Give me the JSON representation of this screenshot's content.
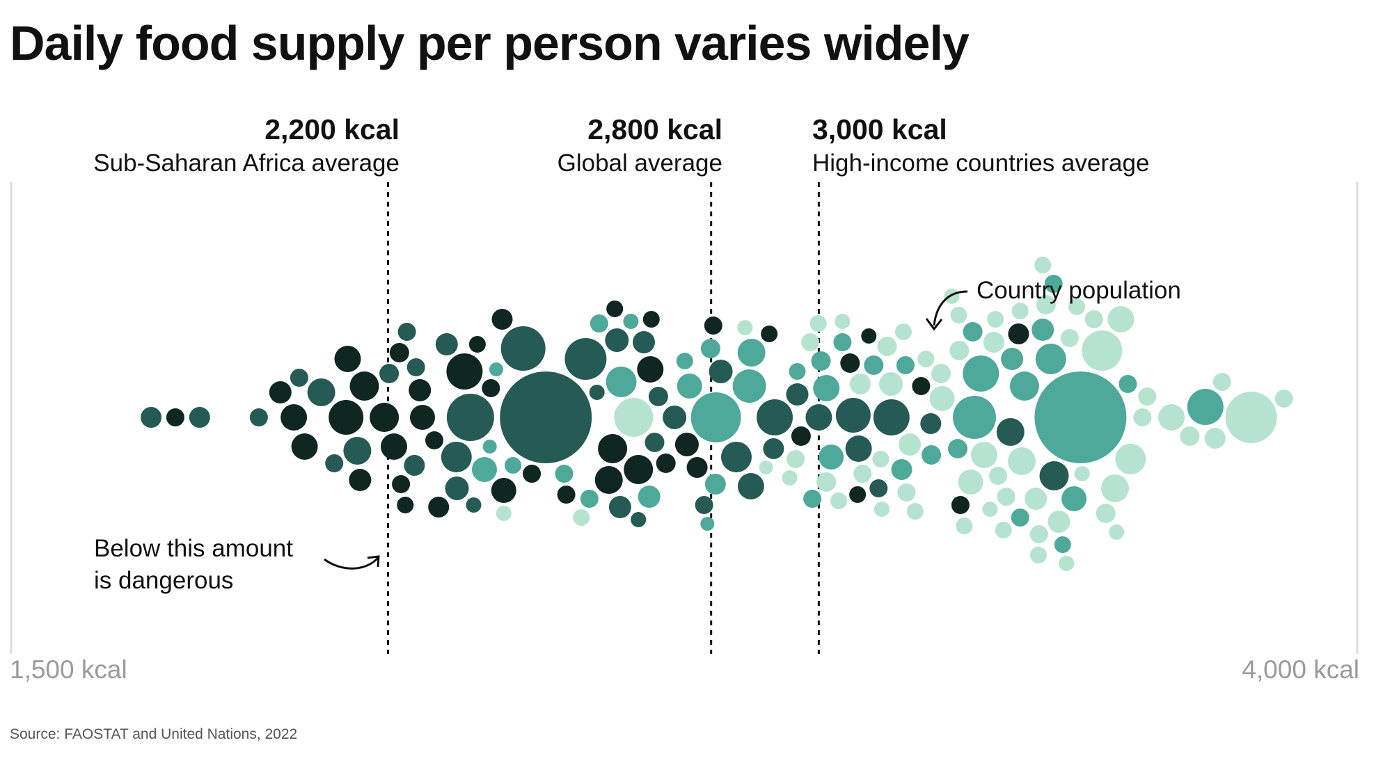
{
  "title": "Daily food supply per person varies widely",
  "source": "Source: FAOSTAT and United Nations, 2022",
  "colors": {
    "darkest": "#0f2622",
    "dark": "#265a54",
    "mid": "#4ea99a",
    "light": "#b5e3d0",
    "reference_line": "#111111",
    "axis": "#dddddd",
    "axis_text": "#9a9a9a"
  },
  "reference_lines": [
    {
      "value_label": "2,200 kcal",
      "description": "Sub-Saharan Africa average"
    },
    {
      "value_label": "2,800 kcal",
      "description": "Global average"
    },
    {
      "value_label": "3,000 kcal",
      "description": "High-income countries average"
    }
  ],
  "annotations": {
    "population": "Country population",
    "danger_line1": "Below this amount",
    "danger_line2": "is dangerous"
  },
  "axis": {
    "min_label": "1,500 kcal",
    "max_label": "4,000 kcal"
  },
  "chart_data": {
    "type": "scatter",
    "title": "Daily food supply per person varies widely",
    "xlabel": "",
    "ylabel": "",
    "xlim": [
      1500,
      4000
    ],
    "unit": "kcal per person per day",
    "reference_lines": [
      {
        "x": 2200,
        "label": "2,200 kcal",
        "description": "Sub-Saharan Africa average"
      },
      {
        "x": 2800,
        "label": "2,800 kcal",
        "description": "Global average"
      },
      {
        "x": 3000,
        "label": "3,000 kcal",
        "description": "High-income countries average"
      }
    ],
    "size_encoding": "Country population",
    "points": [
      [
        1760,
        1,
        15
      ],
      [
        1805,
        0,
        13
      ],
      [
        1850,
        1,
        15
      ],
      [
        1960,
        1,
        13
      ],
      [
        2000,
        0,
        16
      ],
      [
        2025,
        0,
        19
      ],
      [
        2035,
        1,
        13
      ],
      [
        2045,
        0,
        19
      ],
      [
        2076,
        1,
        20
      ],
      [
        2100,
        1,
        13
      ],
      [
        2122,
        0,
        25
      ],
      [
        2125,
        0,
        19
      ],
      [
        2143,
        1,
        20
      ],
      [
        2156,
        0,
        21
      ],
      [
        2148,
        0,
        16
      ],
      [
        2193,
        0,
        21
      ],
      [
        2211,
        0,
        19
      ],
      [
        2202,
        1,
        14
      ],
      [
        2221,
        0,
        14
      ],
      [
        2224,
        0,
        13
      ],
      [
        2235,
        1,
        13
      ],
      [
        2232,
        0,
        12
      ],
      [
        2249,
        1,
        15
      ],
      [
        2252,
        1,
        13
      ],
      [
        2259,
        0,
        16
      ],
      [
        2264,
        0,
        18
      ],
      [
        2286,
        0,
        13
      ],
      [
        2294,
        0,
        15
      ],
      [
        2309,
        1,
        16
      ],
      [
        2327,
        1,
        22
      ],
      [
        2328,
        1,
        17
      ],
      [
        2342,
        0,
        26
      ],
      [
        2353,
        1,
        34
      ],
      [
        2359,
        1,
        11
      ],
      [
        2366,
        0,
        12
      ],
      [
        2379,
        2,
        18
      ],
      [
        2389,
        2,
        10
      ],
      [
        2391,
        0,
        13
      ],
      [
        2401,
        2,
        10
      ],
      [
        2412,
        0,
        15
      ],
      [
        2415,
        3,
        11
      ],
      [
        2415,
        0,
        18
      ],
      [
        2432,
        2,
        12
      ],
      [
        2451,
        1,
        32
      ],
      [
        2467,
        0,
        13
      ],
      [
        2493,
        1,
        66
      ],
      [
        2527,
        2,
        13
      ],
      [
        2531,
        0,
        13
      ],
      [
        2559,
        3,
        12
      ],
      [
        2567,
        1,
        30
      ],
      [
        2574,
        2,
        13
      ],
      [
        2588,
        1,
        11
      ],
      [
        2592,
        2,
        13
      ],
      [
        2617,
        0,
        21
      ],
      [
        2610,
        0,
        20
      ],
      [
        2625,
        1,
        17
      ],
      [
        2633,
        2,
        22
      ],
      [
        2621,
        0,
        12
      ],
      [
        2631,
        1,
        16
      ],
      [
        2651,
        2,
        11
      ],
      [
        2656,
        3,
        28
      ],
      [
        2665,
        0,
        21
      ],
      [
        2665,
        1,
        11
      ],
      [
        2675,
        1,
        16
      ],
      [
        2687,
        0,
        19
      ],
      [
        2685,
        2,
        16
      ],
      [
        2689,
        0,
        12
      ],
      [
        2702,
        1,
        14
      ],
      [
        2695,
        1,
        14
      ],
      [
        2716,
        0,
        14
      ],
      [
        2732,
        1,
        17
      ],
      [
        2751,
        2,
        12
      ],
      [
        2755,
        0,
        17
      ],
      [
        2760,
        2,
        18
      ],
      [
        2774,
        0,
        15
      ],
      [
        2787,
        1,
        13
      ],
      [
        2793,
        2,
        10
      ],
      [
        2799,
        2,
        14
      ],
      [
        2804,
        0,
        13
      ],
      [
        2808,
        2,
        15
      ],
      [
        2809,
        2,
        36
      ],
      [
        2818,
        1,
        17
      ],
      [
        2847,
        1,
        22
      ],
      [
        2863,
        3,
        11
      ],
      [
        2871,
        2,
        24
      ],
      [
        2874,
        1,
        19
      ],
      [
        2875,
        2,
        20
      ],
      [
        2902,
        3,
        10
      ],
      [
        2908,
        0,
        12
      ],
      [
        2916,
        1,
        15
      ],
      [
        2918,
        1,
        26
      ],
      [
        2946,
        3,
        11
      ],
      [
        2957,
        3,
        13
      ],
      [
        2960,
        2,
        12
      ],
      [
        2960,
        1,
        16
      ],
      [
        2967,
        0,
        14
      ],
      [
        2984,
        3,
        13
      ],
      [
        2988,
        2,
        13
      ],
      [
        2999,
        3,
        12
      ],
      [
        3000,
        1,
        19
      ],
      [
        3004,
        2,
        14
      ],
      [
        3014,
        3,
        14
      ],
      [
        3014,
        2,
        19
      ],
      [
        3023,
        2,
        18
      ],
      [
        3037,
        3,
        12
      ],
      [
        3044,
        3,
        11
      ],
      [
        3044,
        2,
        13
      ],
      [
        3058,
        0,
        14
      ],
      [
        3064,
        1,
        25
      ],
      [
        3072,
        0,
        12
      ],
      [
        3074,
        1,
        19
      ],
      [
        3077,
        3,
        15
      ],
      [
        3081,
        3,
        13
      ],
      [
        3093,
        0,
        11
      ],
      [
        3102,
        2,
        14
      ],
      [
        3111,
        1,
        13
      ],
      [
        3115,
        3,
        12
      ],
      [
        3117,
        3,
        11
      ],
      [
        3127,
        3,
        14
      ],
      [
        3135,
        1,
        26
      ],
      [
        3134,
        3,
        17
      ],
      [
        3154,
        2,
        15
      ],
      [
        3157,
        3,
        12
      ],
      [
        3161,
        2,
        13
      ],
      [
        3163,
        3,
        13
      ],
      [
        3169,
        3,
        16
      ],
      [
        3179,
        3,
        12
      ],
      [
        3190,
        0,
        13
      ],
      [
        3199,
        3,
        12
      ],
      [
        3208,
        1,
        15
      ],
      [
        3209,
        2,
        14
      ],
      [
        3227,
        3,
        14
      ],
      [
        3229,
        3,
        18
      ],
      [
        3247,
        3,
        11
      ],
      [
        3258,
        2,
        14
      ],
      [
        3260,
        3,
        12
      ],
      [
        3261,
        3,
        14
      ],
      [
        3263,
        0,
        13
      ],
      [
        3270,
        3,
        12
      ],
      [
        3289,
        2,
        31
      ],
      [
        3282,
        3,
        18
      ],
      [
        3286,
        2,
        14
      ],
      [
        3307,
        3,
        19
      ],
      [
        3301,
        2,
        26
      ],
      [
        3318,
        3,
        11
      ],
      [
        3328,
        3,
        12
      ],
      [
        3325,
        3,
        15
      ],
      [
        3333,
        3,
        13
      ],
      [
        3343,
        3,
        12
      ],
      [
        3348,
        3,
        13
      ],
      [
        3356,
        1,
        20
      ],
      [
        3359,
        2,
        16
      ],
      [
        3374,
        2,
        13
      ],
      [
        3374,
        3,
        12
      ],
      [
        3371,
        0,
        15
      ],
      [
        3377,
        3,
        20
      ],
      [
        3382,
        2,
        21
      ],
      [
        3403,
        3,
        16
      ],
      [
        3408,
        3,
        12
      ],
      [
        3409,
        3,
        13
      ],
      [
        3416,
        2,
        16
      ],
      [
        3416,
        3,
        12
      ],
      [
        3422,
        3,
        14
      ],
      [
        3431,
        2,
        22
      ],
      [
        3437,
        1,
        21
      ],
      [
        3436,
        2,
        13
      ],
      [
        3446,
        3,
        16
      ],
      [
        3453,
        2,
        12
      ],
      [
        3460,
        3,
        11
      ],
      [
        3466,
        3,
        13
      ],
      [
        3474,
        2,
        18
      ],
      [
        3479,
        3,
        12
      ],
      [
        3486,
        2,
        66
      ],
      [
        3489,
        3,
        11
      ],
      [
        3511,
        3,
        13
      ],
      [
        3526,
        3,
        29
      ],
      [
        3533,
        3,
        14
      ],
      [
        3550,
        3,
        20
      ],
      [
        3553,
        3,
        11
      ],
      [
        3561,
        3,
        19
      ],
      [
        3574,
        2,
        13
      ],
      [
        3579,
        3,
        22
      ],
      [
        3601,
        3,
        13
      ],
      [
        3610,
        3,
        13
      ],
      [
        3655,
        3,
        19
      ],
      [
        3689,
        3,
        14
      ],
      [
        3718,
        2,
        26
      ],
      [
        3736,
        3,
        15
      ],
      [
        3749,
        3,
        13
      ],
      [
        3803,
        3,
        37
      ],
      [
        3864,
        3,
        13
      ]
    ]
  }
}
